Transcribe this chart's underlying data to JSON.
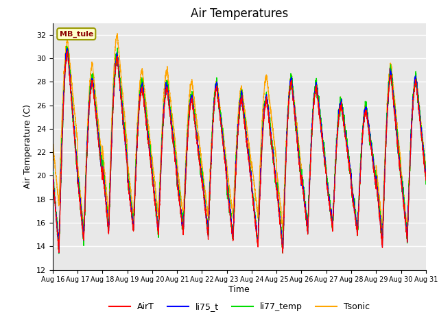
{
  "title": "Air Temperatures",
  "ylabel": "Air Temperature (C)",
  "xlabel": "Time",
  "ylim": [
    12,
    33
  ],
  "annotation_text": "MB_tule",
  "legend_labels": [
    "AirT",
    "li75_t",
    "li77_temp",
    "Tsonic"
  ],
  "line_colors": [
    "red",
    "blue",
    "#00dd00",
    "orange"
  ],
  "bg_color": "#e8e8e8",
  "tick_labels": [
    "Aug 16",
    "Aug 17",
    "Aug 18",
    "Aug 19",
    "Aug 20",
    "Aug 21",
    "Aug 22",
    "Aug 23",
    "Aug 24",
    "Aug 25",
    "Aug 26",
    "Aug 27",
    "Aug 28",
    "Aug 29",
    "Aug 30",
    "Aug 31"
  ],
  "yticks": [
    12,
    14,
    16,
    18,
    20,
    22,
    24,
    26,
    28,
    30,
    32
  ],
  "day_peaks_airT": [
    30.5,
    28.0,
    30.0,
    27.5,
    27.5,
    26.5,
    27.5,
    26.5,
    26.5,
    28.0,
    27.5,
    26.0,
    25.5,
    28.5,
    28.0
  ],
  "day_mins_airT": [
    13.5,
    14.5,
    15.0,
    15.2,
    15.0,
    15.0,
    14.8,
    14.5,
    14.0,
    13.5,
    15.2,
    15.5,
    15.0,
    14.0,
    14.5
  ],
  "day_peaks_tsonic": [
    31.5,
    29.5,
    32.0,
    29.0,
    29.0,
    28.0,
    28.0,
    27.5,
    28.5,
    28.5,
    27.5,
    26.5,
    26.0,
    29.5,
    28.5
  ],
  "day_mins_tsonic": [
    17.5,
    15.5,
    16.5,
    16.5,
    16.5,
    16.5,
    16.5,
    16.5,
    16.5,
    15.5,
    15.5,
    15.5,
    15.5,
    15.5,
    15.5
  ]
}
